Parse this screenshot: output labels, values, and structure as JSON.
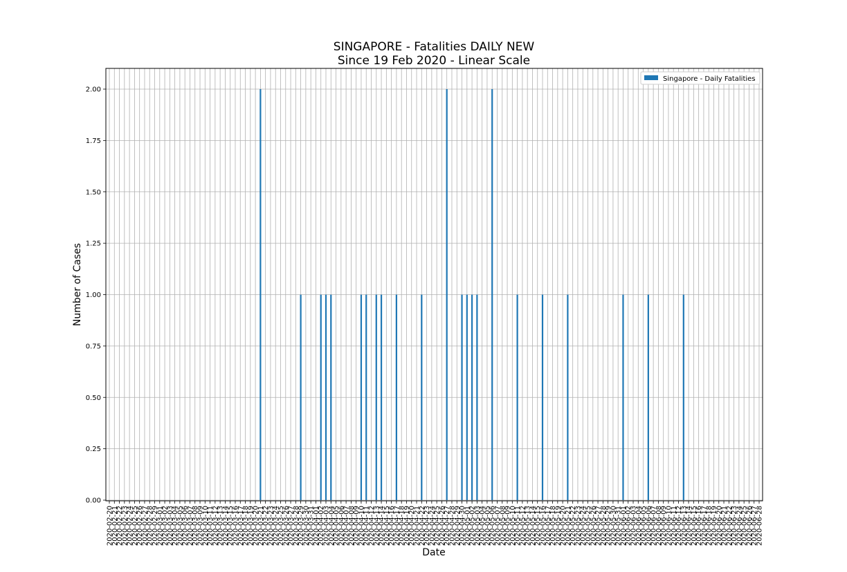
{
  "chart_data": {
    "type": "bar",
    "title": "SINGAPORE - Fatalities DAILY NEW",
    "subtitle": "Since 19 Feb 2020 - Linear Scale",
    "xlabel": "Date",
    "ylabel": "Number of Cases",
    "ylim": [
      0,
      2.1
    ],
    "yticks": [
      "0.00",
      "0.25",
      "0.50",
      "0.75",
      "1.00",
      "1.25",
      "1.50",
      "1.75",
      "2.00"
    ],
    "x_start": "2020-02-20",
    "x_end": "2020-06-28",
    "grid": true,
    "legend_position": "top-right",
    "bar_color": "#1f77b4",
    "series": [
      {
        "name": "Singapore - Daily Fatalities",
        "points": [
          {
            "date": "2020-03-21",
            "value": 2
          },
          {
            "date": "2020-03-29",
            "value": 1
          },
          {
            "date": "2020-04-02",
            "value": 1
          },
          {
            "date": "2020-04-03",
            "value": 1
          },
          {
            "date": "2020-04-04",
            "value": 1
          },
          {
            "date": "2020-04-10",
            "value": 1
          },
          {
            "date": "2020-04-11",
            "value": 1
          },
          {
            "date": "2020-04-13",
            "value": 1
          },
          {
            "date": "2020-04-14",
            "value": 1
          },
          {
            "date": "2020-04-17",
            "value": 1
          },
          {
            "date": "2020-04-22",
            "value": 1
          },
          {
            "date": "2020-04-27",
            "value": 2
          },
          {
            "date": "2020-04-30",
            "value": 1
          },
          {
            "date": "2020-05-01",
            "value": 1
          },
          {
            "date": "2020-05-02",
            "value": 1
          },
          {
            "date": "2020-05-03",
            "value": 1
          },
          {
            "date": "2020-05-06",
            "value": 2
          },
          {
            "date": "2020-05-11",
            "value": 1
          },
          {
            "date": "2020-05-16",
            "value": 1
          },
          {
            "date": "2020-05-21",
            "value": 1
          },
          {
            "date": "2020-06-01",
            "value": 1
          },
          {
            "date": "2020-06-06",
            "value": 1
          },
          {
            "date": "2020-06-13",
            "value": 1
          }
        ]
      }
    ]
  }
}
